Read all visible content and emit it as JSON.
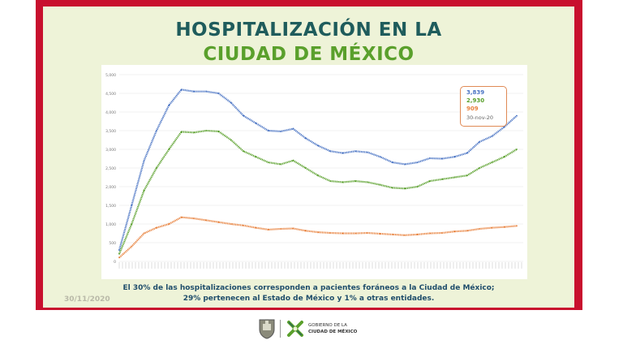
{
  "title_line1": "HOSPITALIZACIÓN EN LA",
  "title_line2": "CIUDAD DE MÉXICO",
  "note_line1": "El 30% de las hospitalizaciones corresponden a pacientes foráneos a la Ciudad de México;",
  "note_line2": "29% pertenecen al Estado de México y 1% a otras entidades.",
  "slide_date": "30/11/2020",
  "footer": {
    "line1": "GOBIERNO DE LA",
    "line2": "CIUDAD DE MÉXICO",
    "shield_icon": "coat-of-arms-icon",
    "logo_icon": "cdmx-x-logo-icon"
  },
  "colors": {
    "frame": "#c8102e",
    "panel": "#eef3d8",
    "total": "#4a74c4",
    "cdmx": "#5aa02c",
    "edomex": "#e8823e",
    "title_dark": "#1f5c5c"
  },
  "chart_data": {
    "type": "line",
    "ylim": [
      0,
      5000
    ],
    "yticks": [
      "0",
      "500",
      "1,000",
      "1,500",
      "2,000",
      "2,500",
      "3,000",
      "3,500",
      "4,000",
      "4,500",
      "5,000"
    ],
    "legend": {
      "total": "3,839",
      "cdmx": "2,930",
      "edomex": "909",
      "date": "30-nov-20"
    },
    "series": [
      {
        "key": "total",
        "values": [
          300,
          1500,
          2700,
          3500,
          4180,
          4600,
          4550,
          4550,
          4500,
          4250,
          3900,
          3700,
          3500,
          3480,
          3550,
          3300,
          3100,
          2950,
          2900,
          2950,
          2920,
          2800,
          2650,
          2600,
          2650,
          2760,
          2750,
          2800,
          2900,
          3200,
          3350,
          3600,
          3900
        ]
      },
      {
        "key": "cdmx",
        "values": [
          200,
          1000,
          1900,
          2500,
          3000,
          3470,
          3450,
          3500,
          3480,
          3250,
          2950,
          2800,
          2650,
          2600,
          2700,
          2500,
          2300,
          2150,
          2120,
          2150,
          2120,
          2050,
          1970,
          1950,
          2000,
          2150,
          2200,
          2250,
          2300,
          2500,
          2650,
          2800,
          3000
        ]
      },
      {
        "key": "edomex",
        "values": [
          100,
          400,
          750,
          900,
          1000,
          1180,
          1150,
          1100,
          1050,
          1000,
          960,
          900,
          850,
          870,
          880,
          820,
          780,
          760,
          750,
          750,
          760,
          740,
          720,
          700,
          720,
          750,
          760,
          800,
          820,
          870,
          900,
          920,
          950
        ]
      }
    ]
  }
}
